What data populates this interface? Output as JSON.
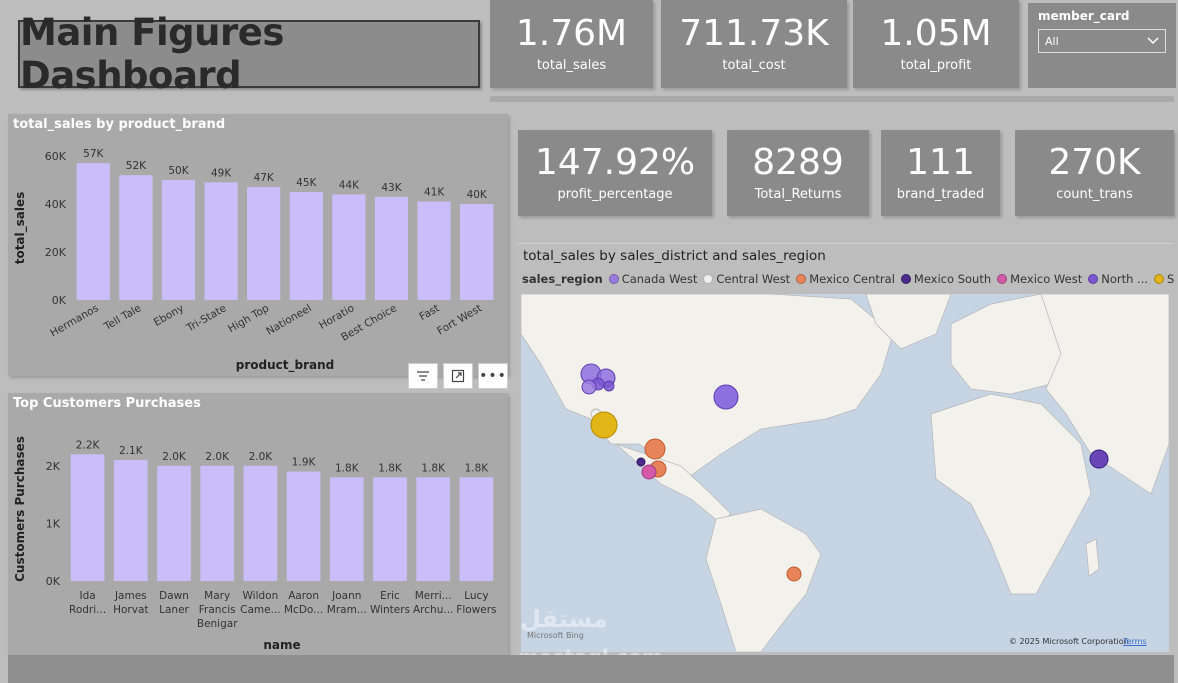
{
  "header": {
    "title": "Main Figures Dashboard"
  },
  "kpis_top": [
    {
      "value": "1.76M",
      "label": "total_sales"
    },
    {
      "value": "711.73K",
      "label": "total_cost"
    },
    {
      "value": "1.05M",
      "label": "total_profit"
    }
  ],
  "kpis_mid": [
    {
      "value": "147.92%",
      "label": "profit_percentage"
    },
    {
      "value": "8289",
      "label": "Total_Returns"
    },
    {
      "value": "111",
      "label": "brand_traded"
    },
    {
      "value": "270K",
      "label": "count_trans"
    }
  ],
  "slicer": {
    "label": "member_card",
    "value": "All"
  },
  "brand_chart": {
    "panel_title": "total_sales by product_brand",
    "chart_data": {
      "type": "bar",
      "title": "total_sales by product_brand",
      "xlabel": "product_brand",
      "ylabel": "total_sales",
      "categories": [
        "Hermanos",
        "Tell Tale",
        "Ebony",
        "Tri-State",
        "High Top",
        "Nationeel",
        "Horatio",
        "Best Choice",
        "Fast",
        "Fort West"
      ],
      "values": [
        57000,
        52000,
        50000,
        49000,
        47000,
        45000,
        44000,
        43000,
        41000,
        40000
      ],
      "data_labels": [
        "57K",
        "52K",
        "50K",
        "49K",
        "47K",
        "45K",
        "44K",
        "43K",
        "41K",
        "40K"
      ],
      "ylim": [
        0,
        60000
      ],
      "yticks": [
        0,
        20000,
        40000,
        60000
      ],
      "ytick_labels": [
        "0K",
        "20K",
        "40K",
        "60K"
      ],
      "color": "#cbbdf9"
    }
  },
  "customers_chart": {
    "panel_title": "Top Customers Purchases",
    "chart_data": {
      "type": "bar",
      "title": "Top Customers Purchases",
      "xlabel": "name",
      "ylabel": "Customers Purchases",
      "categories": [
        [
          "Ida",
          "Rodri..."
        ],
        [
          "James",
          "Horvat"
        ],
        [
          "Dawn",
          "Laner"
        ],
        [
          "Mary",
          "Francis",
          "Benigar"
        ],
        [
          "Wildon",
          "Came..."
        ],
        [
          "Aaron",
          "McDo..."
        ],
        [
          "Joann",
          "Mram..."
        ],
        [
          "Eric",
          "Winters"
        ],
        [
          "Merri...",
          "Archu..."
        ],
        [
          "Lucy",
          "Flowers"
        ]
      ],
      "values": [
        2200,
        2100,
        2000,
        2000,
        2000,
        1900,
        1800,
        1800,
        1800,
        1800
      ],
      "data_labels": [
        "2.2K",
        "2.1K",
        "2.0K",
        "2.0K",
        "2.0K",
        "1.9K",
        "1.8K",
        "1.8K",
        "1.8K",
        "1.8K"
      ],
      "ylim": [
        0,
        2500
      ],
      "yticks": [
        0,
        1000,
        2000
      ],
      "ytick_labels": [
        "0K",
        "1K",
        "2K"
      ],
      "color": "#cbbdf9"
    }
  },
  "map": {
    "title": "total_sales by sales_district and sales_region",
    "legend_title": "sales_region",
    "legend": [
      {
        "label": "Canada West",
        "color": "#9b7be0"
      },
      {
        "label": "Central West",
        "color": "#eeeeee"
      },
      {
        "label": "Mexico Central",
        "color": "#e8845a"
      },
      {
        "label": "Mexico South",
        "color": "#4b2a8c"
      },
      {
        "label": "Mexico West",
        "color": "#d35aa8"
      },
      {
        "label": "North ...",
        "color": "#7a55d0"
      },
      {
        "label": "South ...",
        "color": "#e2b618"
      }
    ],
    "attribution": "© 2025 Microsoft Corporation",
    "terms": "Terms",
    "bing": "Microsoft Bing"
  },
  "watermark": {
    "arabic": "مستقل",
    "latin": "mostaql.com"
  }
}
